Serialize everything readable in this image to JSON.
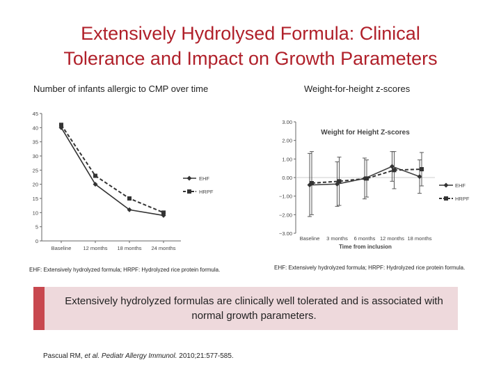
{
  "slide": {
    "title_line1": "Extensively Hydrolysed Formula: Clinical",
    "title_line2": "Tolerance and Impact on Growth Parameters",
    "left_heading": "Number of infants allergic to CMP over time",
    "right_heading": "Weight-for-height z-scores",
    "left_caption": "EHF: Extensively hydrolyzed formula; HRPF: Hydrolyzed rice protein formula.",
    "right_caption": "EHF: Extensively hydrolyzed formula; HRPF: Hydrolyzed rice protein formula.",
    "conclusion": "Extensively hydrolyzed formulas are clinically well tolerated and is associated with normal growth parameters.",
    "citation_authors": "Pascual RM, ",
    "citation_etal": "et al. Pediatr Allergy Immunol.",
    "citation_rest": " 2010;21:577-585.",
    "accent_color": "#b0202a",
    "band_color": "#eed9dc"
  },
  "chart_data": [
    {
      "type": "line",
      "title": "",
      "categories": [
        "Baseline",
        "12 months",
        "18 months",
        "24 months"
      ],
      "series": [
        {
          "name": "EHF",
          "values": [
            40,
            20,
            11,
            9
          ]
        },
        {
          "name": "HRPF",
          "values": [
            41,
            23,
            15,
            10
          ]
        }
      ],
      "ylim": [
        0,
        45
      ],
      "yticks": [
        "0",
        "5",
        "10",
        "15",
        "20",
        "25",
        "30",
        "35",
        "40",
        "45"
      ],
      "xlabel": "",
      "ylabel": ""
    },
    {
      "type": "line",
      "title": "Weight for Height Z-scores",
      "categories": [
        "Baseline",
        "3 months",
        "6 months",
        "12 months",
        "18 months"
      ],
      "series": [
        {
          "name": "EHF",
          "values": [
            -0.4,
            -0.35,
            -0.05,
            0.6,
            0.05
          ],
          "error": [
            1.7,
            1.2,
            1.1,
            0.8,
            0.9
          ]
        },
        {
          "name": "HRPF",
          "values": [
            -0.3,
            -0.2,
            -0.05,
            0.4,
            0.45
          ],
          "error": [
            1.7,
            1.3,
            1.0,
            1.0,
            0.9
          ]
        }
      ],
      "ylim": [
        -3,
        3
      ],
      "yticks": [
        "−3.00",
        "−2.00",
        "−1.00",
        "0.00",
        "1.00",
        "2.00",
        "3.00"
      ],
      "xlabel": "Time from inclusion",
      "ylabel": ""
    }
  ]
}
